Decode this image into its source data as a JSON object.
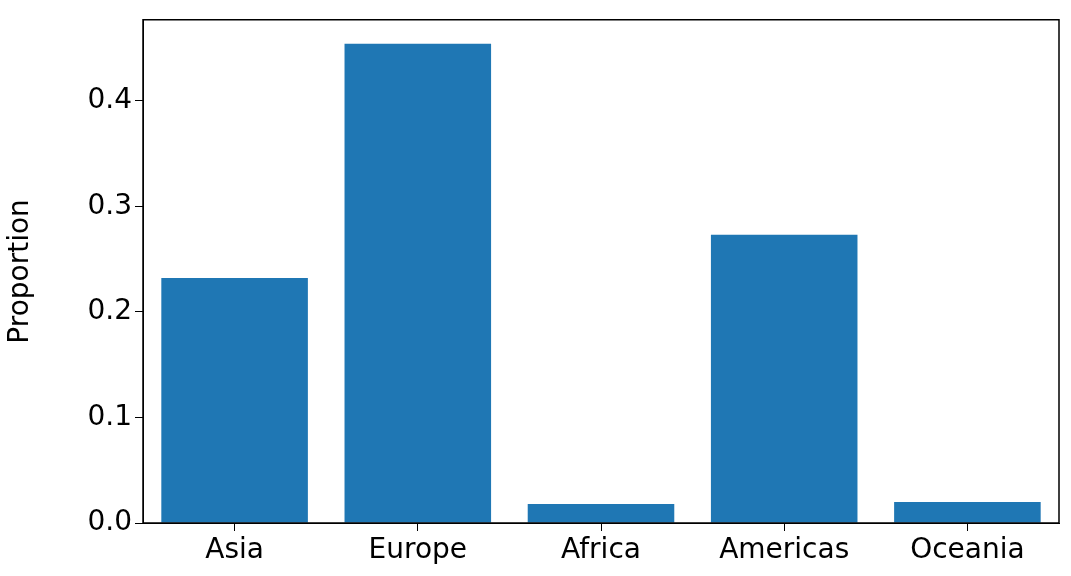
{
  "chart_data": {
    "type": "bar",
    "ylabel": "Proportion",
    "categories": [
      "Asia",
      "Europe",
      "Africa",
      "Americas",
      "Oceania"
    ],
    "values": [
      0.232,
      0.454,
      0.018,
      0.273,
      0.02
    ],
    "color": "#1f77b4",
    "ylim": [
      0,
      0.4767
    ],
    "yticks": [
      {
        "value": 0,
        "label": "0.0"
      },
      0.1,
      0.2,
      0.3,
      0.4
    ],
    "grid": false,
    "legend": false
  }
}
